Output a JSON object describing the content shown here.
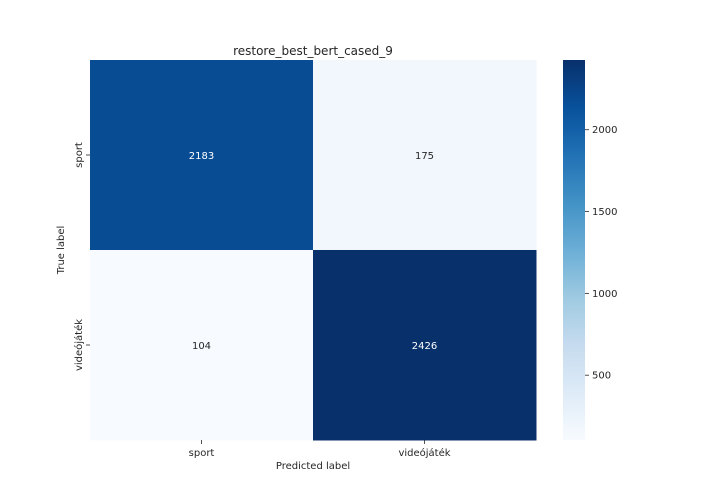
{
  "chart_data": {
    "type": "heatmap",
    "title": "restore_best_bert_cased_9",
    "xlabel": "Predicted label",
    "ylabel": "True label",
    "x_categories": [
      "sport",
      "videójáték"
    ],
    "y_categories": [
      "sport",
      "videójáték"
    ],
    "matrix": [
      [
        2183,
        175
      ],
      [
        104,
        2426
      ]
    ],
    "colorbar": {
      "range": [
        104,
        2426
      ],
      "ticks": [
        500,
        1000,
        1500,
        2000
      ],
      "tick_labels": [
        "500",
        "1000",
        "1500",
        "2000"
      ],
      "colormap": "Blues"
    },
    "colors": {
      "low": "#f7fbff",
      "high": "#08306b",
      "dark_text": "#262626",
      "light_text": "#ffffff"
    }
  }
}
